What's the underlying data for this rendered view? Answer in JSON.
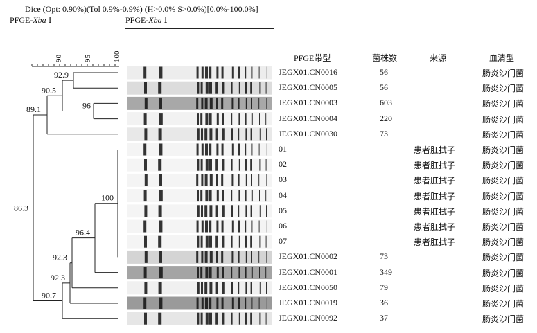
{
  "header": {
    "line1": "Dice (Opt: 0.90%)(Tol 0.9%-0.9%) (H>0.0% S>0.0%)[0.0%-100.0%]",
    "line2_prefix": "PFGE-",
    "line2_enzyme": "Xba",
    "line2_suffix": " Ⅰ",
    "line3_prefix": "PFGE-",
    "line3_enzyme": "Xba",
    "line3_suffix": " Ⅰ"
  },
  "scale": {
    "ticks": [
      "90",
      "95",
      "100"
    ]
  },
  "columns": {
    "pattern": "PFGE带型",
    "count": "菌株数",
    "source": "来源",
    "serotype": "血清型"
  },
  "rows": [
    {
      "pattern": "JEGX01.CN0016",
      "count": "56",
      "source": "",
      "serotype": "肠炎沙门菌",
      "shade": "#ededed"
    },
    {
      "pattern": "JEGX01.CN0005",
      "count": "56",
      "source": "",
      "serotype": "肠炎沙门菌",
      "shade": "#dcdcdc"
    },
    {
      "pattern": "JEGX01.CN0003",
      "count": "603",
      "source": "",
      "serotype": "肠炎沙门菌",
      "shade": "#a8a8a8"
    },
    {
      "pattern": "JEGX01.CN0004",
      "count": "220",
      "source": "",
      "serotype": "肠炎沙门菌",
      "shade": "#f2f2f2"
    },
    {
      "pattern": "JEGX01.CN0030",
      "count": "73",
      "source": "",
      "serotype": "肠炎沙门菌",
      "shade": "#e8e8e8"
    },
    {
      "pattern": "01",
      "count": "",
      "source": "患者肛拭子",
      "serotype": "肠炎沙门菌",
      "shade": "#f4f4f4"
    },
    {
      "pattern": "02",
      "count": "",
      "source": "患者肛拭子",
      "serotype": "肠炎沙门菌",
      "shade": "#f4f4f4"
    },
    {
      "pattern": "03",
      "count": "",
      "source": "患者肛拭子",
      "serotype": "肠炎沙门菌",
      "shade": "#f4f4f4"
    },
    {
      "pattern": "04",
      "count": "",
      "source": "患者肛拭子",
      "serotype": "肠炎沙门菌",
      "shade": "#f4f4f4"
    },
    {
      "pattern": "05",
      "count": "",
      "source": "患者肛拭子",
      "serotype": "肠炎沙门菌",
      "shade": "#f4f4f4"
    },
    {
      "pattern": "06",
      "count": "",
      "source": "患者肛拭子",
      "serotype": "肠炎沙门菌",
      "shade": "#f4f4f4"
    },
    {
      "pattern": "07",
      "count": "",
      "source": "患者肛拭子",
      "serotype": "肠炎沙门菌",
      "shade": "#f4f4f4"
    },
    {
      "pattern": "JEGX01.CN0002",
      "count": "73",
      "source": "",
      "serotype": "肠炎沙门菌",
      "shade": "#d4d4d4"
    },
    {
      "pattern": "JEGX01.CN0001",
      "count": "349",
      "source": "",
      "serotype": "肠炎沙门菌",
      "shade": "#a4a4a4"
    },
    {
      "pattern": "JEGX01.CN0050",
      "count": "79",
      "source": "",
      "serotype": "肠炎沙门菌",
      "shade": "#f0f0f0"
    },
    {
      "pattern": "JEGX01.CN0019",
      "count": "36",
      "source": "",
      "serotype": "肠炎沙门菌",
      "shade": "#9a9a9a"
    },
    {
      "pattern": "JEGX01.CN0092",
      "count": "37",
      "source": "",
      "serotype": "肠炎沙门菌",
      "shade": "#e6e6e6"
    }
  ],
  "nodes": [
    {
      "label": "92.9"
    },
    {
      "label": "90.5"
    },
    {
      "label": "96"
    },
    {
      "label": "89.1"
    },
    {
      "label": "86.3"
    },
    {
      "label": "100"
    },
    {
      "label": "96.4"
    },
    {
      "label": "92.3"
    },
    {
      "label": "92.3"
    },
    {
      "label": "90.7"
    }
  ]
}
